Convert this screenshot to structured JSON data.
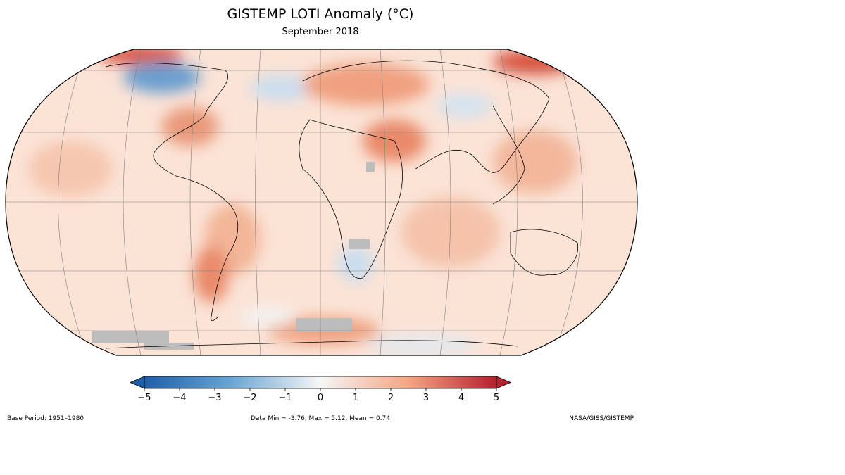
{
  "title": "GISTEMP LOTI Anomaly (°C)",
  "subtitle": "September 2018",
  "footer": {
    "base_period": "Base Period: 1951–1980",
    "stats": "Data Min = -3.76, Max = 5.12, Mean = 0.74",
    "credit": "NASA/GISS/GISTEMP"
  },
  "colorbar": {
    "ticks": [
      "−5",
      "−4",
      "−3",
      "−2",
      "−1",
      "0",
      "1",
      "2",
      "3",
      "4",
      "5"
    ],
    "colors": [
      "#1f5fa8",
      "#6aa6d3",
      "#f7f7f7",
      "#f4a582",
      "#b51f2e"
    ]
  },
  "map_colors": {
    "ocean_base": "#fbe3d6",
    "warm": "#f2b193",
    "hot": "#d8543f",
    "cool": "#c9def0",
    "cold": "#6c9fcf",
    "missing": "#bdbdbd"
  }
}
